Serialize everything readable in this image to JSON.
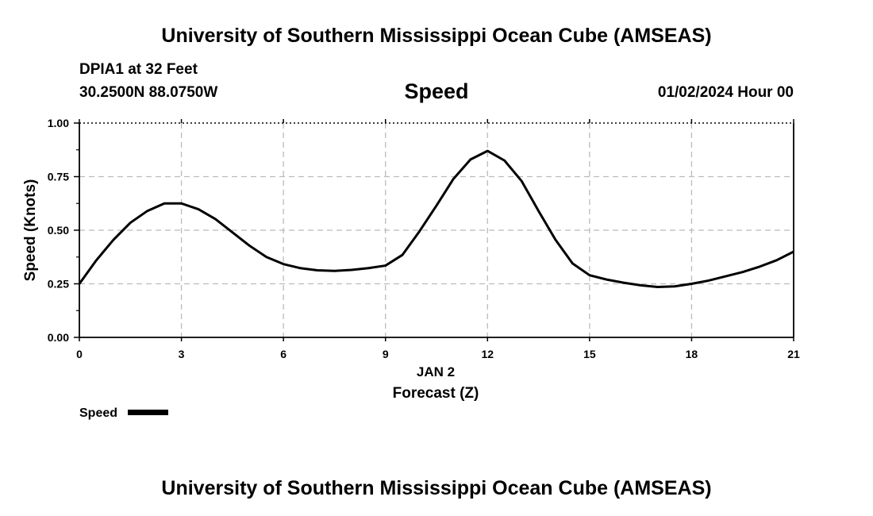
{
  "header": {
    "title_top": "University of Southern Mississippi Ocean Cube (AMSEAS)",
    "title_bottom": "University of Southern Mississippi Ocean Cube (AMSEAS)",
    "station": "DPIA1 at 32 Feet",
    "location": "30.2500N  88.0750W",
    "datetime": "01/02/2024 Hour 00"
  },
  "chart_data": {
    "type": "line",
    "title": "Speed",
    "ylabel": "Speed (Knots)",
    "xlabel": "Forecast (Z)",
    "date_label": "JAN 2",
    "xlim": [
      0,
      21
    ],
    "ylim": [
      0,
      1
    ],
    "x_ticks": [
      0,
      3,
      6,
      9,
      12,
      15,
      18,
      21
    ],
    "x_tick_labels": [
      "0",
      "3",
      "6",
      "9",
      "12",
      "15",
      "18",
      "21"
    ],
    "y_ticks": [
      0,
      0.25,
      0.5,
      0.75,
      1.0
    ],
    "y_tick_labels": [
      "0.00",
      "0.25",
      "0.50",
      "0.75",
      "1.00"
    ],
    "grid": true,
    "legend": "bottom-left",
    "series": [
      {
        "name": "Speed",
        "color": "#000000",
        "x": [
          0,
          0.5,
          1,
          1.5,
          2,
          2.5,
          3,
          3.5,
          4,
          4.5,
          5,
          5.5,
          6,
          6.5,
          7,
          7.5,
          8,
          8.5,
          9,
          9.5,
          10,
          10.5,
          11,
          11.5,
          12,
          12.5,
          13,
          13.5,
          14,
          14.5,
          15,
          15.5,
          16,
          16.5,
          17,
          17.5,
          18,
          18.5,
          19,
          19.5,
          20,
          20.5,
          21
        ],
        "values": [
          0.25,
          0.36,
          0.455,
          0.535,
          0.59,
          0.625,
          0.625,
          0.598,
          0.552,
          0.49,
          0.428,
          0.375,
          0.342,
          0.323,
          0.313,
          0.31,
          0.315,
          0.323,
          0.335,
          0.385,
          0.495,
          0.615,
          0.74,
          0.83,
          0.87,
          0.825,
          0.73,
          0.59,
          0.455,
          0.345,
          0.29,
          0.27,
          0.255,
          0.243,
          0.235,
          0.238,
          0.25,
          0.265,
          0.285,
          0.305,
          0.33,
          0.36,
          0.4
        ]
      }
    ]
  }
}
